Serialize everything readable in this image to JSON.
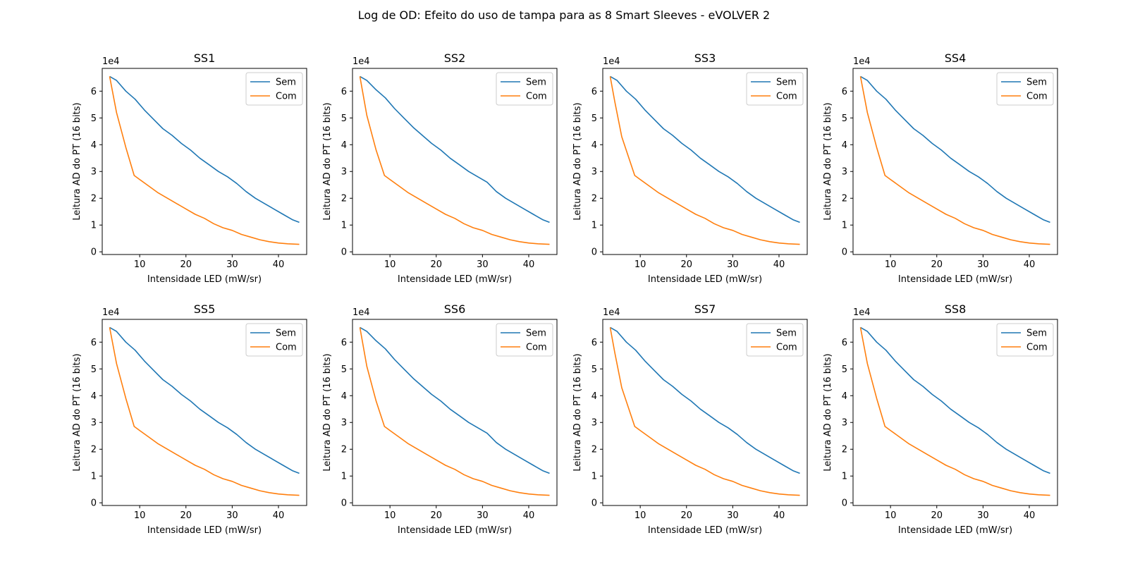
{
  "figure": {
    "title": "Log de OD: Efeito do uso de tampa para as 8 Smart Sleeves - eVOLVER 2"
  },
  "chart_data": [
    {
      "type": "line",
      "title": "SS1",
      "xlabel": "Intensidade LED (mW/sr)",
      "ylabel": "Leitura AD do PT (16 bits)",
      "y_multiplier": "1e4",
      "xlim": [
        1.9,
        46.1
      ],
      "ylim": [
        -0.1,
        6.85
      ],
      "xticks": [
        10,
        20,
        30,
        40
      ],
      "yticks": [
        0,
        1,
        2,
        3,
        4,
        5,
        6
      ],
      "grid": false,
      "legend": "top-right",
      "series": [
        {
          "name": "Sem",
          "color": "#1f77b4",
          "x": [
            3.5,
            5,
            7,
            9,
            11,
            13,
            15,
            17,
            19,
            21,
            23,
            25,
            27,
            29,
            31,
            33,
            35,
            37,
            39,
            41,
            43,
            44.5
          ],
          "y": [
            6.55,
            6.4,
            6.0,
            5.7,
            5.3,
            4.95,
            4.6,
            4.35,
            4.05,
            3.8,
            3.5,
            3.25,
            3.0,
            2.8,
            2.55,
            2.25,
            2.0,
            1.8,
            1.6,
            1.4,
            1.2,
            1.1
          ]
        },
        {
          "name": "Com",
          "color": "#ff7f0e",
          "x": [
            3.5,
            5,
            7,
            8.8,
            10,
            12,
            14,
            16,
            18,
            20,
            22,
            24,
            26,
            28,
            30,
            32,
            34,
            36,
            38,
            40,
            42,
            44.5
          ],
          "y": [
            6.55,
            5.2,
            3.9,
            2.85,
            2.7,
            2.45,
            2.2,
            2.0,
            1.8,
            1.6,
            1.4,
            1.25,
            1.05,
            0.9,
            0.8,
            0.65,
            0.55,
            0.45,
            0.38,
            0.33,
            0.3,
            0.28
          ]
        }
      ]
    },
    {
      "type": "line",
      "title": "SS2",
      "xlabel": "Intensidade LED (mW/sr)",
      "ylabel": "Leitura AD do PT (16 bits)",
      "y_multiplier": "1e4",
      "xlim": [
        1.9,
        46.1
      ],
      "ylim": [
        -0.1,
        6.85
      ],
      "xticks": [
        10,
        20,
        30,
        40
      ],
      "yticks": [
        0,
        1,
        2,
        3,
        4,
        5,
        6
      ],
      "grid": false,
      "legend": "top-right",
      "series": [
        {
          "name": "Sem",
          "color": "#1f77b4",
          "x": [
            3.5,
            5,
            7,
            9,
            11,
            13,
            15,
            17,
            19,
            21,
            23,
            25,
            27,
            29,
            31,
            33,
            35,
            37,
            39,
            41,
            43,
            44.5
          ],
          "y": [
            6.55,
            6.4,
            6.05,
            5.75,
            5.35,
            5.0,
            4.65,
            4.35,
            4.05,
            3.8,
            3.5,
            3.25,
            3.0,
            2.8,
            2.6,
            2.25,
            2.0,
            1.8,
            1.6,
            1.4,
            1.2,
            1.1
          ]
        },
        {
          "name": "Com",
          "color": "#ff7f0e",
          "x": [
            3.5,
            5,
            7,
            8.8,
            10,
            12,
            14,
            16,
            18,
            20,
            22,
            24,
            26,
            28,
            30,
            32,
            34,
            36,
            38,
            40,
            42,
            44.5
          ],
          "y": [
            6.55,
            5.1,
            3.8,
            2.85,
            2.7,
            2.45,
            2.2,
            2.0,
            1.8,
            1.6,
            1.4,
            1.25,
            1.05,
            0.9,
            0.8,
            0.65,
            0.55,
            0.45,
            0.38,
            0.33,
            0.3,
            0.28
          ]
        }
      ]
    },
    {
      "type": "line",
      "title": "SS3",
      "xlabel": "Intensidade LED (mW/sr)",
      "ylabel": "Leitura AD do PT (16 bits)",
      "y_multiplier": "1e4",
      "xlim": [
        1.9,
        46.1
      ],
      "ylim": [
        -0.1,
        6.85
      ],
      "xticks": [
        10,
        20,
        30,
        40
      ],
      "yticks": [
        0,
        1,
        2,
        3,
        4,
        5,
        6
      ],
      "grid": false,
      "legend": "top-right",
      "series": [
        {
          "name": "Sem",
          "color": "#1f77b4",
          "x": [
            3.5,
            5,
            7,
            9,
            11,
            13,
            15,
            17,
            19,
            21,
            23,
            25,
            27,
            29,
            31,
            33,
            35,
            37,
            39,
            41,
            43,
            44.5
          ],
          "y": [
            6.55,
            6.4,
            6.0,
            5.7,
            5.3,
            4.95,
            4.6,
            4.35,
            4.05,
            3.8,
            3.5,
            3.25,
            3.0,
            2.8,
            2.55,
            2.25,
            2.0,
            1.8,
            1.6,
            1.4,
            1.2,
            1.1
          ]
        },
        {
          "name": "Com",
          "color": "#ff7f0e",
          "x": [
            3.5,
            4.5,
            6,
            8.8,
            10,
            12,
            14,
            16,
            18,
            20,
            22,
            24,
            26,
            28,
            30,
            32,
            34,
            36,
            38,
            40,
            42,
            44.5
          ],
          "y": [
            6.55,
            5.6,
            4.3,
            2.85,
            2.7,
            2.45,
            2.2,
            2.0,
            1.8,
            1.6,
            1.4,
            1.25,
            1.05,
            0.9,
            0.8,
            0.65,
            0.55,
            0.45,
            0.38,
            0.33,
            0.3,
            0.28
          ]
        }
      ]
    },
    {
      "type": "line",
      "title": "SS4",
      "xlabel": "Intensidade LED (mW/sr)",
      "ylabel": "Leitura AD do PT (16 bits)",
      "y_multiplier": "1e4",
      "xlim": [
        1.9,
        46.1
      ],
      "ylim": [
        -0.1,
        6.85
      ],
      "xticks": [
        10,
        20,
        30,
        40
      ],
      "yticks": [
        0,
        1,
        2,
        3,
        4,
        5,
        6
      ],
      "grid": false,
      "legend": "top-right",
      "series": [
        {
          "name": "Sem",
          "color": "#1f77b4",
          "x": [
            3.5,
            5,
            7,
            9,
            11,
            13,
            15,
            17,
            19,
            21,
            23,
            25,
            27,
            29,
            31,
            33,
            35,
            37,
            39,
            41,
            43,
            44.5
          ],
          "y": [
            6.55,
            6.4,
            6.0,
            5.7,
            5.3,
            4.95,
            4.6,
            4.35,
            4.05,
            3.8,
            3.5,
            3.25,
            3.0,
            2.8,
            2.55,
            2.25,
            2.0,
            1.8,
            1.6,
            1.4,
            1.2,
            1.1
          ]
        },
        {
          "name": "Com",
          "color": "#ff7f0e",
          "x": [
            3.5,
            5,
            7,
            8.8,
            10,
            12,
            14,
            16,
            18,
            20,
            22,
            24,
            26,
            28,
            30,
            32,
            34,
            36,
            38,
            40,
            42,
            44.5
          ],
          "y": [
            6.55,
            5.2,
            3.9,
            2.85,
            2.7,
            2.45,
            2.2,
            2.0,
            1.8,
            1.6,
            1.4,
            1.25,
            1.05,
            0.9,
            0.8,
            0.65,
            0.55,
            0.45,
            0.38,
            0.33,
            0.3,
            0.28
          ]
        }
      ]
    },
    {
      "type": "line",
      "title": "SS5",
      "xlabel": "Intensidade LED (mW/sr)",
      "ylabel": "Leitura AD do PT (16 bits)",
      "y_multiplier": "1e4",
      "xlim": [
        1.9,
        46.1
      ],
      "ylim": [
        -0.1,
        6.85
      ],
      "xticks": [
        10,
        20,
        30,
        40
      ],
      "yticks": [
        0,
        1,
        2,
        3,
        4,
        5,
        6
      ],
      "grid": false,
      "legend": "top-right",
      "series": [
        {
          "name": "Sem",
          "color": "#1f77b4",
          "x": [
            3.5,
            5,
            7,
            9,
            11,
            13,
            15,
            17,
            19,
            21,
            23,
            25,
            27,
            29,
            31,
            33,
            35,
            37,
            39,
            41,
            43,
            44.5
          ],
          "y": [
            6.55,
            6.4,
            6.0,
            5.7,
            5.3,
            4.95,
            4.6,
            4.35,
            4.05,
            3.8,
            3.5,
            3.25,
            3.0,
            2.8,
            2.55,
            2.25,
            2.0,
            1.8,
            1.6,
            1.4,
            1.2,
            1.1
          ]
        },
        {
          "name": "Com",
          "color": "#ff7f0e",
          "x": [
            3.5,
            5,
            7,
            8.8,
            10,
            12,
            14,
            16,
            18,
            20,
            22,
            24,
            26,
            28,
            30,
            32,
            34,
            36,
            38,
            40,
            42,
            44.5
          ],
          "y": [
            6.55,
            5.2,
            3.9,
            2.85,
            2.7,
            2.45,
            2.2,
            2.0,
            1.8,
            1.6,
            1.4,
            1.25,
            1.05,
            0.9,
            0.8,
            0.65,
            0.55,
            0.45,
            0.38,
            0.33,
            0.3,
            0.28
          ]
        }
      ]
    },
    {
      "type": "line",
      "title": "SS6",
      "xlabel": "Intensidade LED (mW/sr)",
      "ylabel": "Leitura AD do PT (16 bits)",
      "y_multiplier": "1e4",
      "xlim": [
        1.9,
        46.1
      ],
      "ylim": [
        -0.1,
        6.85
      ],
      "xticks": [
        10,
        20,
        30,
        40
      ],
      "yticks": [
        0,
        1,
        2,
        3,
        4,
        5,
        6
      ],
      "grid": false,
      "legend": "top-right",
      "series": [
        {
          "name": "Sem",
          "color": "#1f77b4",
          "x": [
            3.5,
            5,
            7,
            9,
            11,
            13,
            15,
            17,
            19,
            21,
            23,
            25,
            27,
            29,
            31,
            33,
            35,
            37,
            39,
            41,
            43,
            44.5
          ],
          "y": [
            6.55,
            6.4,
            6.05,
            5.75,
            5.35,
            5.0,
            4.65,
            4.35,
            4.05,
            3.8,
            3.5,
            3.25,
            3.0,
            2.8,
            2.6,
            2.25,
            2.0,
            1.8,
            1.6,
            1.4,
            1.2,
            1.1
          ]
        },
        {
          "name": "Com",
          "color": "#ff7f0e",
          "x": [
            3.5,
            5,
            7,
            8.8,
            10,
            12,
            14,
            16,
            18,
            20,
            22,
            24,
            26,
            28,
            30,
            32,
            34,
            36,
            38,
            40,
            42,
            44.5
          ],
          "y": [
            6.55,
            5.1,
            3.8,
            2.85,
            2.7,
            2.45,
            2.2,
            2.0,
            1.8,
            1.6,
            1.4,
            1.25,
            1.05,
            0.9,
            0.8,
            0.65,
            0.55,
            0.45,
            0.38,
            0.33,
            0.3,
            0.28
          ]
        }
      ]
    },
    {
      "type": "line",
      "title": "SS7",
      "xlabel": "Intensidade LED (mW/sr)",
      "ylabel": "Leitura AD do PT (16 bits)",
      "y_multiplier": "1e4",
      "xlim": [
        1.9,
        46.1
      ],
      "ylim": [
        -0.1,
        6.85
      ],
      "xticks": [
        10,
        20,
        30,
        40
      ],
      "yticks": [
        0,
        1,
        2,
        3,
        4,
        5,
        6
      ],
      "grid": false,
      "legend": "top-right",
      "series": [
        {
          "name": "Sem",
          "color": "#1f77b4",
          "x": [
            3.5,
            5,
            7,
            9,
            11,
            13,
            15,
            17,
            19,
            21,
            23,
            25,
            27,
            29,
            31,
            33,
            35,
            37,
            39,
            41,
            43,
            44.5
          ],
          "y": [
            6.55,
            6.4,
            6.0,
            5.7,
            5.3,
            4.95,
            4.6,
            4.35,
            4.05,
            3.8,
            3.5,
            3.25,
            3.0,
            2.8,
            2.55,
            2.25,
            2.0,
            1.8,
            1.6,
            1.4,
            1.2,
            1.1
          ]
        },
        {
          "name": "Com",
          "color": "#ff7f0e",
          "x": [
            3.5,
            4.5,
            6,
            8.8,
            10,
            12,
            14,
            16,
            18,
            20,
            22,
            24,
            26,
            28,
            30,
            32,
            34,
            36,
            38,
            40,
            42,
            44.5
          ],
          "y": [
            6.55,
            5.6,
            4.3,
            2.85,
            2.7,
            2.45,
            2.2,
            2.0,
            1.8,
            1.6,
            1.4,
            1.25,
            1.05,
            0.9,
            0.8,
            0.65,
            0.55,
            0.45,
            0.38,
            0.33,
            0.3,
            0.28
          ]
        }
      ]
    },
    {
      "type": "line",
      "title": "SS8",
      "xlabel": "Intensidade LED (mW/sr)",
      "ylabel": "Leitura AD do PT (16 bits)",
      "y_multiplier": "1e4",
      "xlim": [
        1.9,
        46.1
      ],
      "ylim": [
        -0.1,
        6.85
      ],
      "xticks": [
        10,
        20,
        30,
        40
      ],
      "yticks": [
        0,
        1,
        2,
        3,
        4,
        5,
        6
      ],
      "grid": false,
      "legend": "top-right",
      "series": [
        {
          "name": "Sem",
          "color": "#1f77b4",
          "x": [
            3.5,
            5,
            7,
            9,
            11,
            13,
            15,
            17,
            19,
            21,
            23,
            25,
            27,
            29,
            31,
            33,
            35,
            37,
            39,
            41,
            43,
            44.5
          ],
          "y": [
            6.55,
            6.4,
            6.0,
            5.7,
            5.3,
            4.95,
            4.6,
            4.35,
            4.05,
            3.8,
            3.5,
            3.25,
            3.0,
            2.8,
            2.55,
            2.25,
            2.0,
            1.8,
            1.6,
            1.4,
            1.2,
            1.1
          ]
        },
        {
          "name": "Com",
          "color": "#ff7f0e",
          "x": [
            3.5,
            5,
            7,
            8.8,
            10,
            12,
            14,
            16,
            18,
            20,
            22,
            24,
            26,
            28,
            30,
            32,
            34,
            36,
            38,
            40,
            42,
            44.5
          ],
          "y": [
            6.55,
            5.2,
            3.9,
            2.85,
            2.7,
            2.45,
            2.2,
            2.0,
            1.8,
            1.6,
            1.4,
            1.25,
            1.05,
            0.9,
            0.8,
            0.65,
            0.55,
            0.45,
            0.38,
            0.33,
            0.3,
            0.28
          ]
        }
      ]
    }
  ]
}
